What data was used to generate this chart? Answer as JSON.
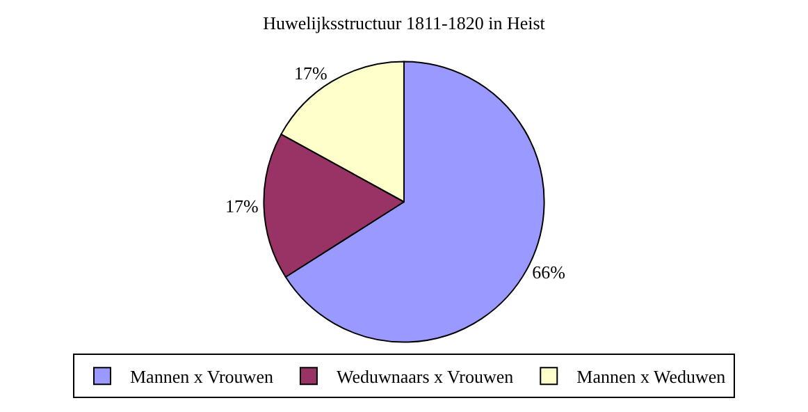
{
  "chart_data": {
    "type": "pie",
    "title": "Huwelijksstructuur 1811-1820 in Heist",
    "categories": [
      "Mannen x Vrouwen",
      "Weduwnaars x Vrouwen",
      "Mannen x Weduwen"
    ],
    "values": [
      66,
      17,
      17
    ],
    "value_labels": [
      "66%",
      "17%",
      "17%"
    ],
    "colors": [
      "#9999ff",
      "#993366",
      "#ffffcc"
    ],
    "legend": "bottom"
  }
}
